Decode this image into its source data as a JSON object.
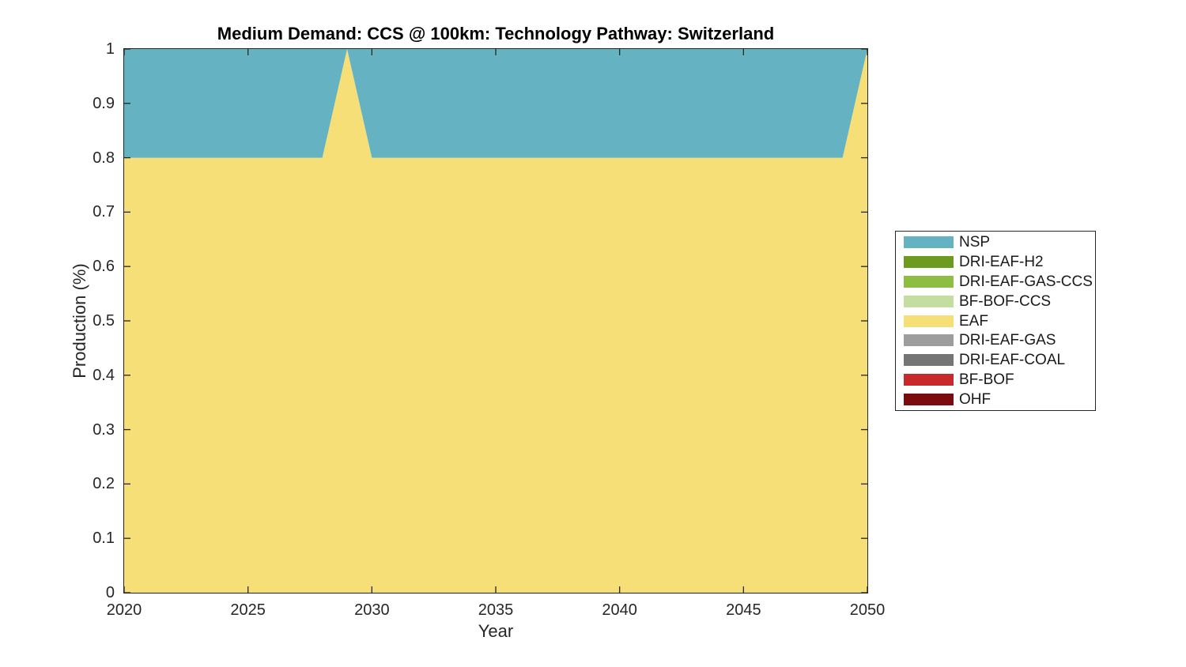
{
  "chart_data": {
    "type": "area",
    "stacked": true,
    "title": "Medium Demand: CCS @ 100km: Technology Pathway: Switzerland",
    "xlabel": "Year",
    "ylabel": "Production (%)",
    "xlim": [
      2020,
      2050
    ],
    "ylim": [
      0,
      1
    ],
    "grid": false,
    "legend_position": "right-outside",
    "axis_color": "#262626",
    "background_color": "#ffffff",
    "x": [
      2020,
      2021,
      2022,
      2023,
      2024,
      2025,
      2026,
      2027,
      2028,
      2029,
      2030,
      2031,
      2032,
      2033,
      2034,
      2035,
      2036,
      2037,
      2038,
      2039,
      2040,
      2041,
      2042,
      2043,
      2044,
      2045,
      2046,
      2047,
      2048,
      2049,
      2050
    ],
    "x_ticks": [
      2020,
      2025,
      2030,
      2035,
      2040,
      2045,
      2050
    ],
    "x_ticklabels": [
      "2020",
      "2025",
      "2030",
      "2035",
      "2040",
      "2045",
      "2050"
    ],
    "y_ticks": [
      0,
      0.1,
      0.2,
      0.3,
      0.4,
      0.5,
      0.6,
      0.7,
      0.8,
      0.9,
      1
    ],
    "y_ticklabels": [
      "0",
      "0.1",
      "0.2",
      "0.3",
      "0.4",
      "0.5",
      "0.6",
      "0.7",
      "0.8",
      "0.9",
      "1"
    ],
    "series": [
      {
        "label": "NSP",
        "color": "#65B2C3",
        "values": [
          0.2,
          0.2,
          0.2,
          0.2,
          0.2,
          0.2,
          0.2,
          0.2,
          0.2,
          0,
          0.2,
          0.2,
          0.2,
          0.2,
          0.2,
          0.2,
          0.2,
          0.2,
          0.2,
          0.2,
          0.2,
          0.2,
          0.2,
          0.2,
          0.2,
          0.2,
          0.2,
          0.2,
          0.2,
          0.2,
          0
        ]
      },
      {
        "label": "DRI-EAF-H2",
        "color": "#6C9B1F",
        "values": [
          0,
          0,
          0,
          0,
          0,
          0,
          0,
          0,
          0,
          0,
          0,
          0,
          0,
          0,
          0,
          0,
          0,
          0,
          0,
          0,
          0,
          0,
          0,
          0,
          0,
          0,
          0,
          0,
          0,
          0,
          0
        ]
      },
      {
        "label": "DRI-EAF-GAS-CCS",
        "color": "#8DBE41",
        "values": [
          0,
          0,
          0,
          0,
          0,
          0,
          0,
          0,
          0,
          0,
          0,
          0,
          0,
          0,
          0,
          0,
          0,
          0,
          0,
          0,
          0,
          0,
          0,
          0,
          0,
          0,
          0,
          0,
          0,
          0,
          0
        ]
      },
      {
        "label": "BF-BOF-CCS",
        "color": "#C4DDA1",
        "values": [
          0,
          0,
          0,
          0,
          0,
          0,
          0,
          0,
          0,
          0,
          0,
          0,
          0,
          0,
          0,
          0,
          0,
          0,
          0,
          0,
          0,
          0,
          0,
          0,
          0,
          0,
          0,
          0,
          0,
          0,
          0
        ]
      },
      {
        "label": "EAF",
        "color": "#F6DF77",
        "values": [
          0.8,
          0.8,
          0.8,
          0.8,
          0.8,
          0.8,
          0.8,
          0.8,
          0.8,
          1,
          0.8,
          0.8,
          0.8,
          0.8,
          0.8,
          0.8,
          0.8,
          0.8,
          0.8,
          0.8,
          0.8,
          0.8,
          0.8,
          0.8,
          0.8,
          0.8,
          0.8,
          0.8,
          0.8,
          0.8,
          1
        ]
      },
      {
        "label": "DRI-EAF-GAS",
        "color": "#9D9D9D",
        "values": [
          0,
          0,
          0,
          0,
          0,
          0,
          0,
          0,
          0,
          0,
          0,
          0,
          0,
          0,
          0,
          0,
          0,
          0,
          0,
          0,
          0,
          0,
          0,
          0,
          0,
          0,
          0,
          0,
          0,
          0,
          0
        ]
      },
      {
        "label": "DRI-EAF-COAL",
        "color": "#757575",
        "values": [
          0,
          0,
          0,
          0,
          0,
          0,
          0,
          0,
          0,
          0,
          0,
          0,
          0,
          0,
          0,
          0,
          0,
          0,
          0,
          0,
          0,
          0,
          0,
          0,
          0,
          0,
          0,
          0,
          0,
          0,
          0
        ]
      },
      {
        "label": "BF-BOF",
        "color": "#C8292B",
        "values": [
          0,
          0,
          0,
          0,
          0,
          0,
          0,
          0,
          0,
          0,
          0,
          0,
          0,
          0,
          0,
          0,
          0,
          0,
          0,
          0,
          0,
          0,
          0,
          0,
          0,
          0,
          0,
          0,
          0,
          0,
          0
        ]
      },
      {
        "label": "OHF",
        "color": "#7A0C10",
        "values": [
          0,
          0,
          0,
          0,
          0,
          0,
          0,
          0,
          0,
          0,
          0,
          0,
          0,
          0,
          0,
          0,
          0,
          0,
          0,
          0,
          0,
          0,
          0,
          0,
          0,
          0,
          0,
          0,
          0,
          0,
          0
        ]
      }
    ]
  }
}
